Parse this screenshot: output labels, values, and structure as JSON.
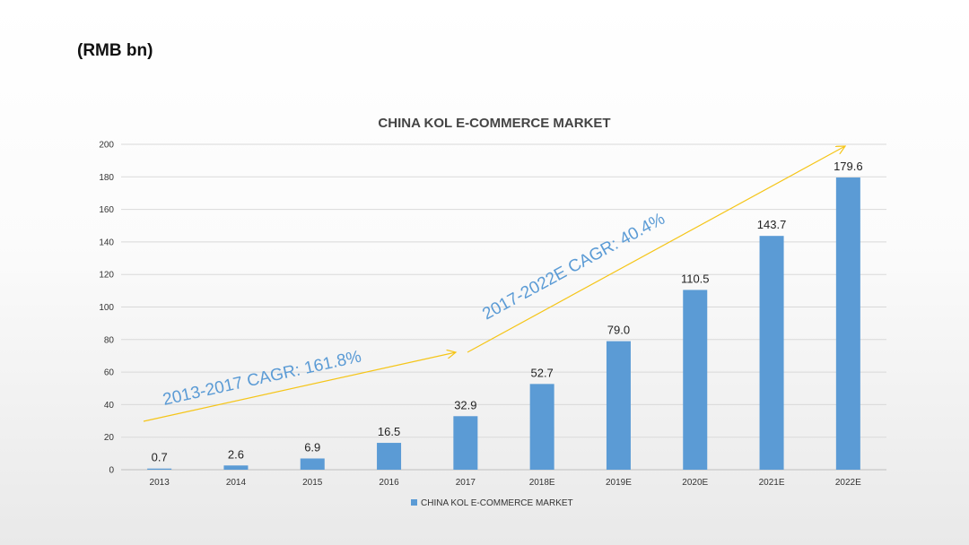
{
  "page": {
    "unit_label": "(RMB bn)"
  },
  "chart_data": {
    "type": "bar",
    "title": "CHINA KOL E-COMMERCE MARKET",
    "categories": [
      "2013",
      "2014",
      "2015",
      "2016",
      "2017",
      "2018E",
      "2019E",
      "2020E",
      "2021E",
      "2022E"
    ],
    "series": [
      {
        "name": "CHINA KOL E-COMMERCE MARKET",
        "values": [
          0.7,
          2.6,
          6.9,
          16.5,
          32.9,
          52.7,
          79.0,
          110.5,
          143.7,
          179.6
        ],
        "labels": [
          "0.7",
          "2.6",
          "6.9",
          "16.5",
          "32.9",
          "52.7",
          "79.0",
          "110.5",
          "143.7",
          "179.6"
        ]
      }
    ],
    "ylim": [
      0,
      200
    ],
    "yticks": [
      0,
      20,
      40,
      60,
      80,
      100,
      120,
      140,
      160,
      180,
      200
    ],
    "grid": true,
    "legend_position": "bottom",
    "bar_color": "#5B9BD5",
    "annotations": [
      {
        "text": "2013-2017 CAGR: 161.8%",
        "color": "#5B9BD5"
      },
      {
        "text": "2017-2022E CAGR: 40.4%",
        "color": "#5B9BD5"
      }
    ],
    "arrow_color": "#F5C518"
  }
}
